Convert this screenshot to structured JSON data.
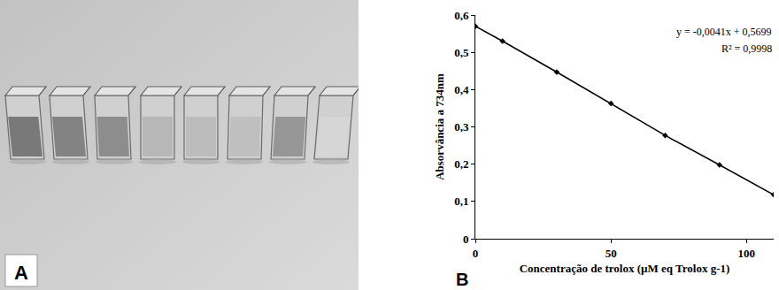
{
  "photo": {
    "label": "A"
  },
  "chart_data": {
    "type": "line",
    "label": "B",
    "x": [
      0,
      10,
      30,
      50,
      70,
      90,
      110
    ],
    "values": [
      0.57,
      0.53,
      0.447,
      0.363,
      0.277,
      0.198,
      0.118
    ],
    "color": "#000000",
    "marker": "diamond",
    "xlabel": "Concentração de trolox (µM eq Trolox g-1)",
    "ylabel": "Absorvância a 734nm",
    "xlim": [
      0,
      110
    ],
    "ylim": [
      0,
      0.6
    ],
    "xticks": [
      0,
      50,
      100
    ],
    "yticks": [
      0,
      {
        "value": 0.1,
        "label": "0,1"
      },
      {
        "value": 0.2,
        "label": "0,2"
      },
      {
        "value": 0.3,
        "label": "0,3"
      },
      {
        "value": 0.4,
        "label": "0,4"
      },
      {
        "value": 0.5,
        "label": "0,5"
      },
      {
        "value": 0.6,
        "label": "0,6"
      }
    ],
    "grid": false,
    "annotations": [
      "y = -0,0041x + 0,5699",
      "R² = 0,9998"
    ]
  }
}
